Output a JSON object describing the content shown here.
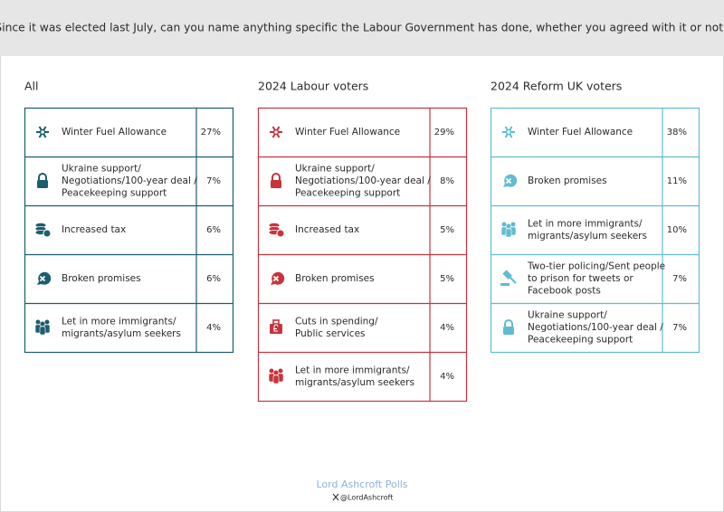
{
  "header": {
    "title": "Since it was elected last July, can you name anything specific the Labour Government has done, whether you agreed with it or not?"
  },
  "columns": [
    {
      "title": "All",
      "color": "#1b5e6e",
      "rows": [
        {
          "label": [
            "Winter Fuel Allowance"
          ],
          "value": "27%"
        },
        {
          "label": [
            "Ukraine support/",
            "Negotiations/100-year deal /",
            "Peacekeeping support"
          ],
          "value": "7%"
        },
        {
          "label": [
            "Increased tax"
          ],
          "value": "6%"
        },
        {
          "label": [
            "Broken promises"
          ],
          "value": "6%"
        },
        {
          "label": [
            "Let in more immigrants/",
            "migrants/asylum seekers"
          ],
          "value": "4%"
        }
      ]
    },
    {
      "title": "2024 Labour voters",
      "color": "#c8333d",
      "rows": [
        {
          "label": [
            "Winter Fuel Allowance"
          ],
          "value": "29%"
        },
        {
          "label": [
            "Ukraine support/",
            "Negotiations/100-year deal /",
            "Peacekeeping support"
          ],
          "value": "8%"
        },
        {
          "label": [
            "Increased tax"
          ],
          "value": "5%"
        },
        {
          "label": [
            "Broken promises"
          ],
          "value": "5%"
        },
        {
          "label": [
            "Cuts in spending/",
            "Public services"
          ],
          "value": "4%"
        },
        {
          "label": [
            "Let in more immigrants/",
            "migrants/asylum seekers"
          ],
          "value": "4%"
        }
      ]
    },
    {
      "title": "2024 Reform UK voters",
      "color": "#5fbcd3",
      "rows": [
        {
          "label": [
            "Winter Fuel Allowance"
          ],
          "value": "38%"
        },
        {
          "label": [
            "Broken promises"
          ],
          "value": "11%"
        },
        {
          "label": [
            "Let in more immigrants/",
            "migrants/asylum seekers"
          ],
          "value": "10%"
        },
        {
          "label": [
            "Two-tier policing/Sent people",
            "to prison for tweets or",
            "Facebook posts"
          ],
          "value": "7%"
        },
        {
          "label": [
            "Ukraine support/",
            "Negotiations/100-year deal /",
            "Peacekeeping support"
          ],
          "value": "7%"
        }
      ]
    }
  ],
  "footer": {
    "brand": "Lord Ashcroft Polls",
    "handle": "@LordAshcroft"
  }
}
